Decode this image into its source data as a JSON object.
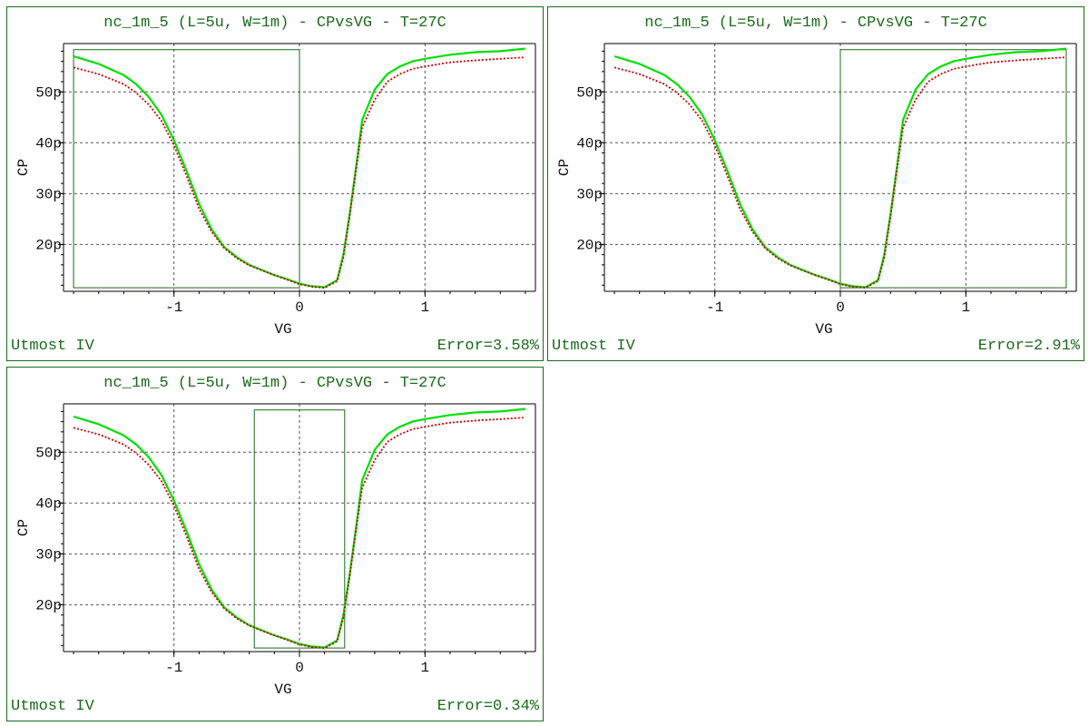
{
  "colors": {
    "frame": "#1a6b1a",
    "measured": "#00e000",
    "simulated": "#cc0000",
    "grid": "#555555"
  },
  "chart_data": [
    {
      "type": "line",
      "title": "nc_1m_5 (L=5u, W=1m) - CPvsVG - T=27C",
      "xlabel": "VG",
      "ylabel": "CP",
      "xlim": [
        -1.88,
        1.88
      ],
      "ylim": [
        10.8,
        59.5
      ],
      "xticks": [
        {
          "v": -1,
          "label": "-1"
        },
        {
          "v": 0,
          "label": "0"
        },
        {
          "v": 1,
          "label": "1"
        }
      ],
      "yticks": [
        {
          "v": 20,
          "label": "20p"
        },
        {
          "v": 30,
          "label": "30p"
        },
        {
          "v": 40,
          "label": "40p"
        },
        {
          "v": 50,
          "label": "50p"
        }
      ],
      "grid": true,
      "footer_left": "Utmost IV",
      "error": "Error=3.58%",
      "fit_window": {
        "x": [
          -1.8,
          0.0
        ],
        "y": [
          11.5,
          58.3
        ]
      },
      "x": [
        -1.8,
        -1.6,
        -1.4,
        -1.3,
        -1.2,
        -1.1,
        -1.0,
        -0.9,
        -0.8,
        -0.7,
        -0.6,
        -0.5,
        -0.4,
        -0.3,
        -0.2,
        -0.1,
        0.0,
        0.1,
        0.2,
        0.3,
        0.35,
        0.4,
        0.45,
        0.5,
        0.6,
        0.7,
        0.8,
        0.9,
        1.0,
        1.2,
        1.4,
        1.6,
        1.8
      ],
      "series": [
        {
          "values": [
            57.0,
            55.5,
            53.3,
            51.5,
            49.0,
            45.5,
            40.5,
            34.5,
            28.0,
            23.0,
            19.5,
            17.5,
            16.0,
            15.0,
            14.0,
            13.2,
            12.3,
            11.8,
            11.6,
            13.0,
            18.0,
            26.0,
            35.0,
            44.5,
            50.5,
            53.5,
            55.0,
            56.0,
            56.5,
            57.3,
            57.8,
            58.0,
            58.5
          ]
        },
        {
          "values": [
            54.8,
            53.5,
            51.5,
            49.8,
            47.5,
            44.3,
            39.5,
            33.5,
            27.0,
            22.5,
            19.3,
            17.3,
            15.9,
            14.9,
            14.0,
            13.1,
            12.2,
            11.7,
            11.5,
            12.8,
            17.5,
            25.5,
            34.5,
            43.0,
            48.5,
            52.0,
            53.5,
            54.5,
            55.0,
            55.8,
            56.2,
            56.5,
            56.8
          ]
        }
      ]
    },
    {
      "type": "line",
      "title": "nc_1m_5 (L=5u, W=1m) - CPvsVG - T=27C",
      "xlabel": "VG",
      "ylabel": "CP",
      "xlim": [
        -1.88,
        1.88
      ],
      "ylim": [
        10.8,
        59.5
      ],
      "xticks": [
        {
          "v": -1,
          "label": "-1"
        },
        {
          "v": 0,
          "label": "0"
        },
        {
          "v": 1,
          "label": "1"
        }
      ],
      "yticks": [
        {
          "v": 20,
          "label": "20p"
        },
        {
          "v": 30,
          "label": "30p"
        },
        {
          "v": 40,
          "label": "40p"
        },
        {
          "v": 50,
          "label": "50p"
        }
      ],
      "grid": true,
      "footer_left": "Utmost IV",
      "error": "Error=2.91%",
      "fit_window": {
        "x": [
          0.0,
          1.8
        ],
        "y": [
          11.5,
          58.3
        ]
      },
      "x": [
        -1.8,
        -1.6,
        -1.4,
        -1.3,
        -1.2,
        -1.1,
        -1.0,
        -0.9,
        -0.8,
        -0.7,
        -0.6,
        -0.5,
        -0.4,
        -0.3,
        -0.2,
        -0.1,
        0.0,
        0.1,
        0.2,
        0.3,
        0.35,
        0.4,
        0.45,
        0.5,
        0.6,
        0.7,
        0.8,
        0.9,
        1.0,
        1.2,
        1.4,
        1.6,
        1.8
      ],
      "series": [
        {
          "values": [
            57.0,
            55.5,
            53.3,
            51.5,
            49.0,
            45.5,
            40.5,
            34.5,
            28.0,
            23.0,
            19.5,
            17.5,
            16.0,
            15.0,
            14.0,
            13.2,
            12.3,
            11.8,
            11.6,
            13.0,
            18.0,
            26.0,
            35.0,
            44.5,
            50.5,
            53.5,
            55.0,
            56.0,
            56.5,
            57.3,
            57.8,
            58.0,
            58.5
          ]
        },
        {
          "values": [
            54.8,
            53.5,
            51.5,
            49.8,
            47.5,
            44.3,
            39.5,
            33.5,
            27.0,
            22.5,
            19.3,
            17.3,
            15.9,
            14.9,
            14.0,
            13.1,
            12.2,
            11.7,
            11.5,
            12.8,
            17.5,
            25.5,
            34.5,
            43.0,
            48.5,
            52.0,
            53.5,
            54.5,
            55.0,
            55.8,
            56.2,
            56.5,
            56.8
          ]
        }
      ]
    },
    {
      "type": "line",
      "title": "nc_1m_5 (L=5u, W=1m) - CPvsVG - T=27C",
      "xlabel": "VG",
      "ylabel": "CP",
      "xlim": [
        -1.88,
        1.88
      ],
      "ylim": [
        10.8,
        59.5
      ],
      "xticks": [
        {
          "v": -1,
          "label": "-1"
        },
        {
          "v": 0,
          "label": "0"
        },
        {
          "v": 1,
          "label": "1"
        }
      ],
      "yticks": [
        {
          "v": 20,
          "label": "20p"
        },
        {
          "v": 30,
          "label": "30p"
        },
        {
          "v": 40,
          "label": "40p"
        },
        {
          "v": 50,
          "label": "50p"
        }
      ],
      "grid": true,
      "footer_left": "Utmost IV",
      "error": "Error=0.34%",
      "fit_window": {
        "x": [
          -0.36,
          0.36
        ],
        "y": [
          11.5,
          58.3
        ]
      },
      "x": [
        -1.8,
        -1.6,
        -1.4,
        -1.3,
        -1.2,
        -1.1,
        -1.0,
        -0.9,
        -0.8,
        -0.7,
        -0.6,
        -0.5,
        -0.4,
        -0.3,
        -0.2,
        -0.1,
        0.0,
        0.1,
        0.2,
        0.3,
        0.35,
        0.4,
        0.45,
        0.5,
        0.6,
        0.7,
        0.8,
        0.9,
        1.0,
        1.2,
        1.4,
        1.6,
        1.8
      ],
      "series": [
        {
          "values": [
            57.0,
            55.5,
            53.3,
            51.5,
            49.0,
            45.5,
            40.5,
            34.5,
            28.0,
            23.0,
            19.5,
            17.5,
            16.0,
            15.0,
            14.0,
            13.2,
            12.3,
            11.8,
            11.6,
            13.0,
            18.0,
            26.0,
            35.0,
            44.5,
            50.5,
            53.5,
            55.0,
            56.0,
            56.5,
            57.3,
            57.8,
            58.0,
            58.5
          ]
        },
        {
          "values": [
            54.8,
            53.5,
            51.5,
            49.8,
            47.5,
            44.3,
            39.5,
            33.5,
            27.0,
            22.5,
            19.3,
            17.3,
            15.9,
            14.9,
            14.0,
            13.1,
            12.2,
            11.7,
            11.5,
            12.8,
            17.5,
            25.5,
            34.5,
            43.0,
            48.5,
            52.0,
            53.5,
            54.5,
            55.0,
            55.8,
            56.2,
            56.5,
            56.8
          ]
        }
      ]
    }
  ]
}
